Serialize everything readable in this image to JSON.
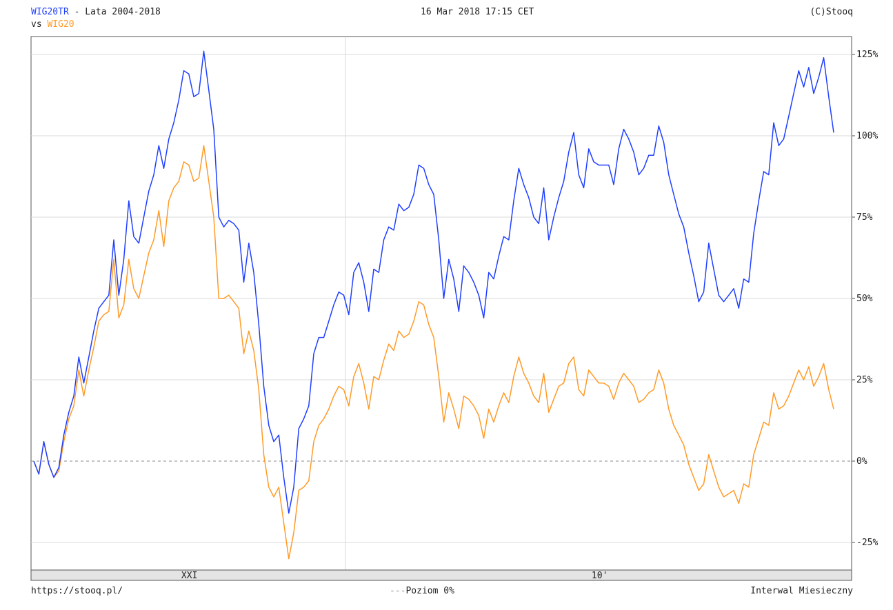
{
  "header": {
    "primary": "WIG20TR",
    "title_suffix": " - Lata 2004-2018",
    "vs_prefix": "vs ",
    "compare": "WIG20",
    "datetime": "16 Mar 2018 17:15 CET",
    "copyright": "(C)Stooq"
  },
  "footer": {
    "url": "https://stooq.pl/",
    "legend_prefix": "---",
    "legend_label": "Poziom 0%",
    "interval": "Interwal Miesieczny"
  },
  "colors": {
    "primary": "#1f3fff",
    "compare": "#ff9a26",
    "grid": "#d8d8d8"
  },
  "chart_data": {
    "type": "line",
    "y_unit": "%",
    "ylim": [
      -33,
      130
    ],
    "yticks": [
      -25,
      0,
      25,
      50,
      75,
      100,
      125
    ],
    "ytick_labels": [
      "-25%",
      "0%",
      "25%",
      "50%",
      "75%",
      "100%",
      "125%"
    ],
    "x_period_labels": [
      "XXI",
      "10'"
    ],
    "zero_line_label": "Poziom 0%",
    "grid": true,
    "series": [
      {
        "name": "WIG20TR",
        "color": "#1f3fff",
        "values": [
          0,
          -4,
          6,
          -1,
          -5,
          -2,
          8,
          15,
          20,
          32,
          24,
          32,
          40,
          47,
          49,
          51,
          68,
          51,
          62,
          80,
          69,
          67,
          75,
          83,
          88,
          97,
          90,
          99,
          104,
          111,
          120,
          119,
          112,
          113,
          126,
          114,
          102,
          75,
          72,
          74,
          73,
          71,
          55,
          67,
          58,
          42,
          23,
          11,
          6,
          8,
          -5,
          -16,
          -8,
          10,
          13,
          17,
          33,
          38,
          38,
          43,
          48,
          52,
          51,
          45,
          58,
          61,
          55,
          46,
          59,
          58,
          68,
          72,
          71,
          79,
          77,
          78,
          82,
          91,
          90,
          85,
          82,
          68,
          50,
          62,
          56,
          46,
          60,
          58,
          55,
          51,
          44,
          58,
          56,
          63,
          69,
          68,
          80,
          90,
          85,
          81,
          75,
          73,
          84,
          68,
          75,
          81,
          86,
          95,
          101,
          88,
          84,
          96,
          92,
          91,
          91,
          91,
          85,
          96,
          102,
          99,
          95,
          88,
          90,
          94,
          94,
          103,
          98,
          88,
          82,
          76,
          72,
          64,
          57,
          49,
          52,
          67,
          59,
          51,
          49,
          51,
          53,
          47,
          56,
          55,
          70,
          80,
          89,
          88,
          104,
          97,
          99,
          106,
          113,
          120,
          115,
          121,
          113,
          118,
          124,
          112,
          101
        ]
      },
      {
        "name": "WIG20",
        "color": "#ff9a26",
        "values": [
          0,
          -4,
          6,
          -1,
          -5,
          -3,
          6,
          13,
          17,
          28,
          20,
          28,
          35,
          43,
          45,
          46,
          62,
          44,
          48,
          62,
          53,
          50,
          57,
          64,
          68,
          77,
          66,
          80,
          84,
          86,
          92,
          91,
          86,
          87,
          97,
          86,
          75,
          50,
          50,
          51,
          49,
          47,
          33,
          40,
          34,
          22,
          2,
          -8,
          -11,
          -8,
          -19,
          -30,
          -22,
          -9,
          -8,
          -6,
          6,
          11,
          13,
          16,
          20,
          23,
          22,
          17,
          26,
          30,
          24,
          16,
          26,
          25,
          31,
          36,
          34,
          40,
          38,
          39,
          43,
          49,
          48,
          42,
          38,
          26,
          12,
          21,
          16,
          10,
          20,
          19,
          17,
          14,
          7,
          16,
          12,
          17,
          21,
          18,
          26,
          32,
          27,
          24,
          20,
          18,
          27,
          15,
          19,
          23,
          24,
          30,
          32,
          22,
          20,
          28,
          26,
          24,
          24,
          23,
          19,
          24,
          27,
          25,
          23,
          18,
          19,
          21,
          22,
          28,
          24,
          16,
          11,
          8,
          5,
          -1,
          -5,
          -9,
          -7,
          2,
          -3,
          -8,
          -11,
          -10,
          -9,
          -13,
          -7,
          -8,
          2,
          7,
          12,
          11,
          21,
          16,
          17,
          20,
          24,
          28,
          25,
          29,
          23,
          26,
          30,
          22,
          16
        ]
      }
    ]
  }
}
